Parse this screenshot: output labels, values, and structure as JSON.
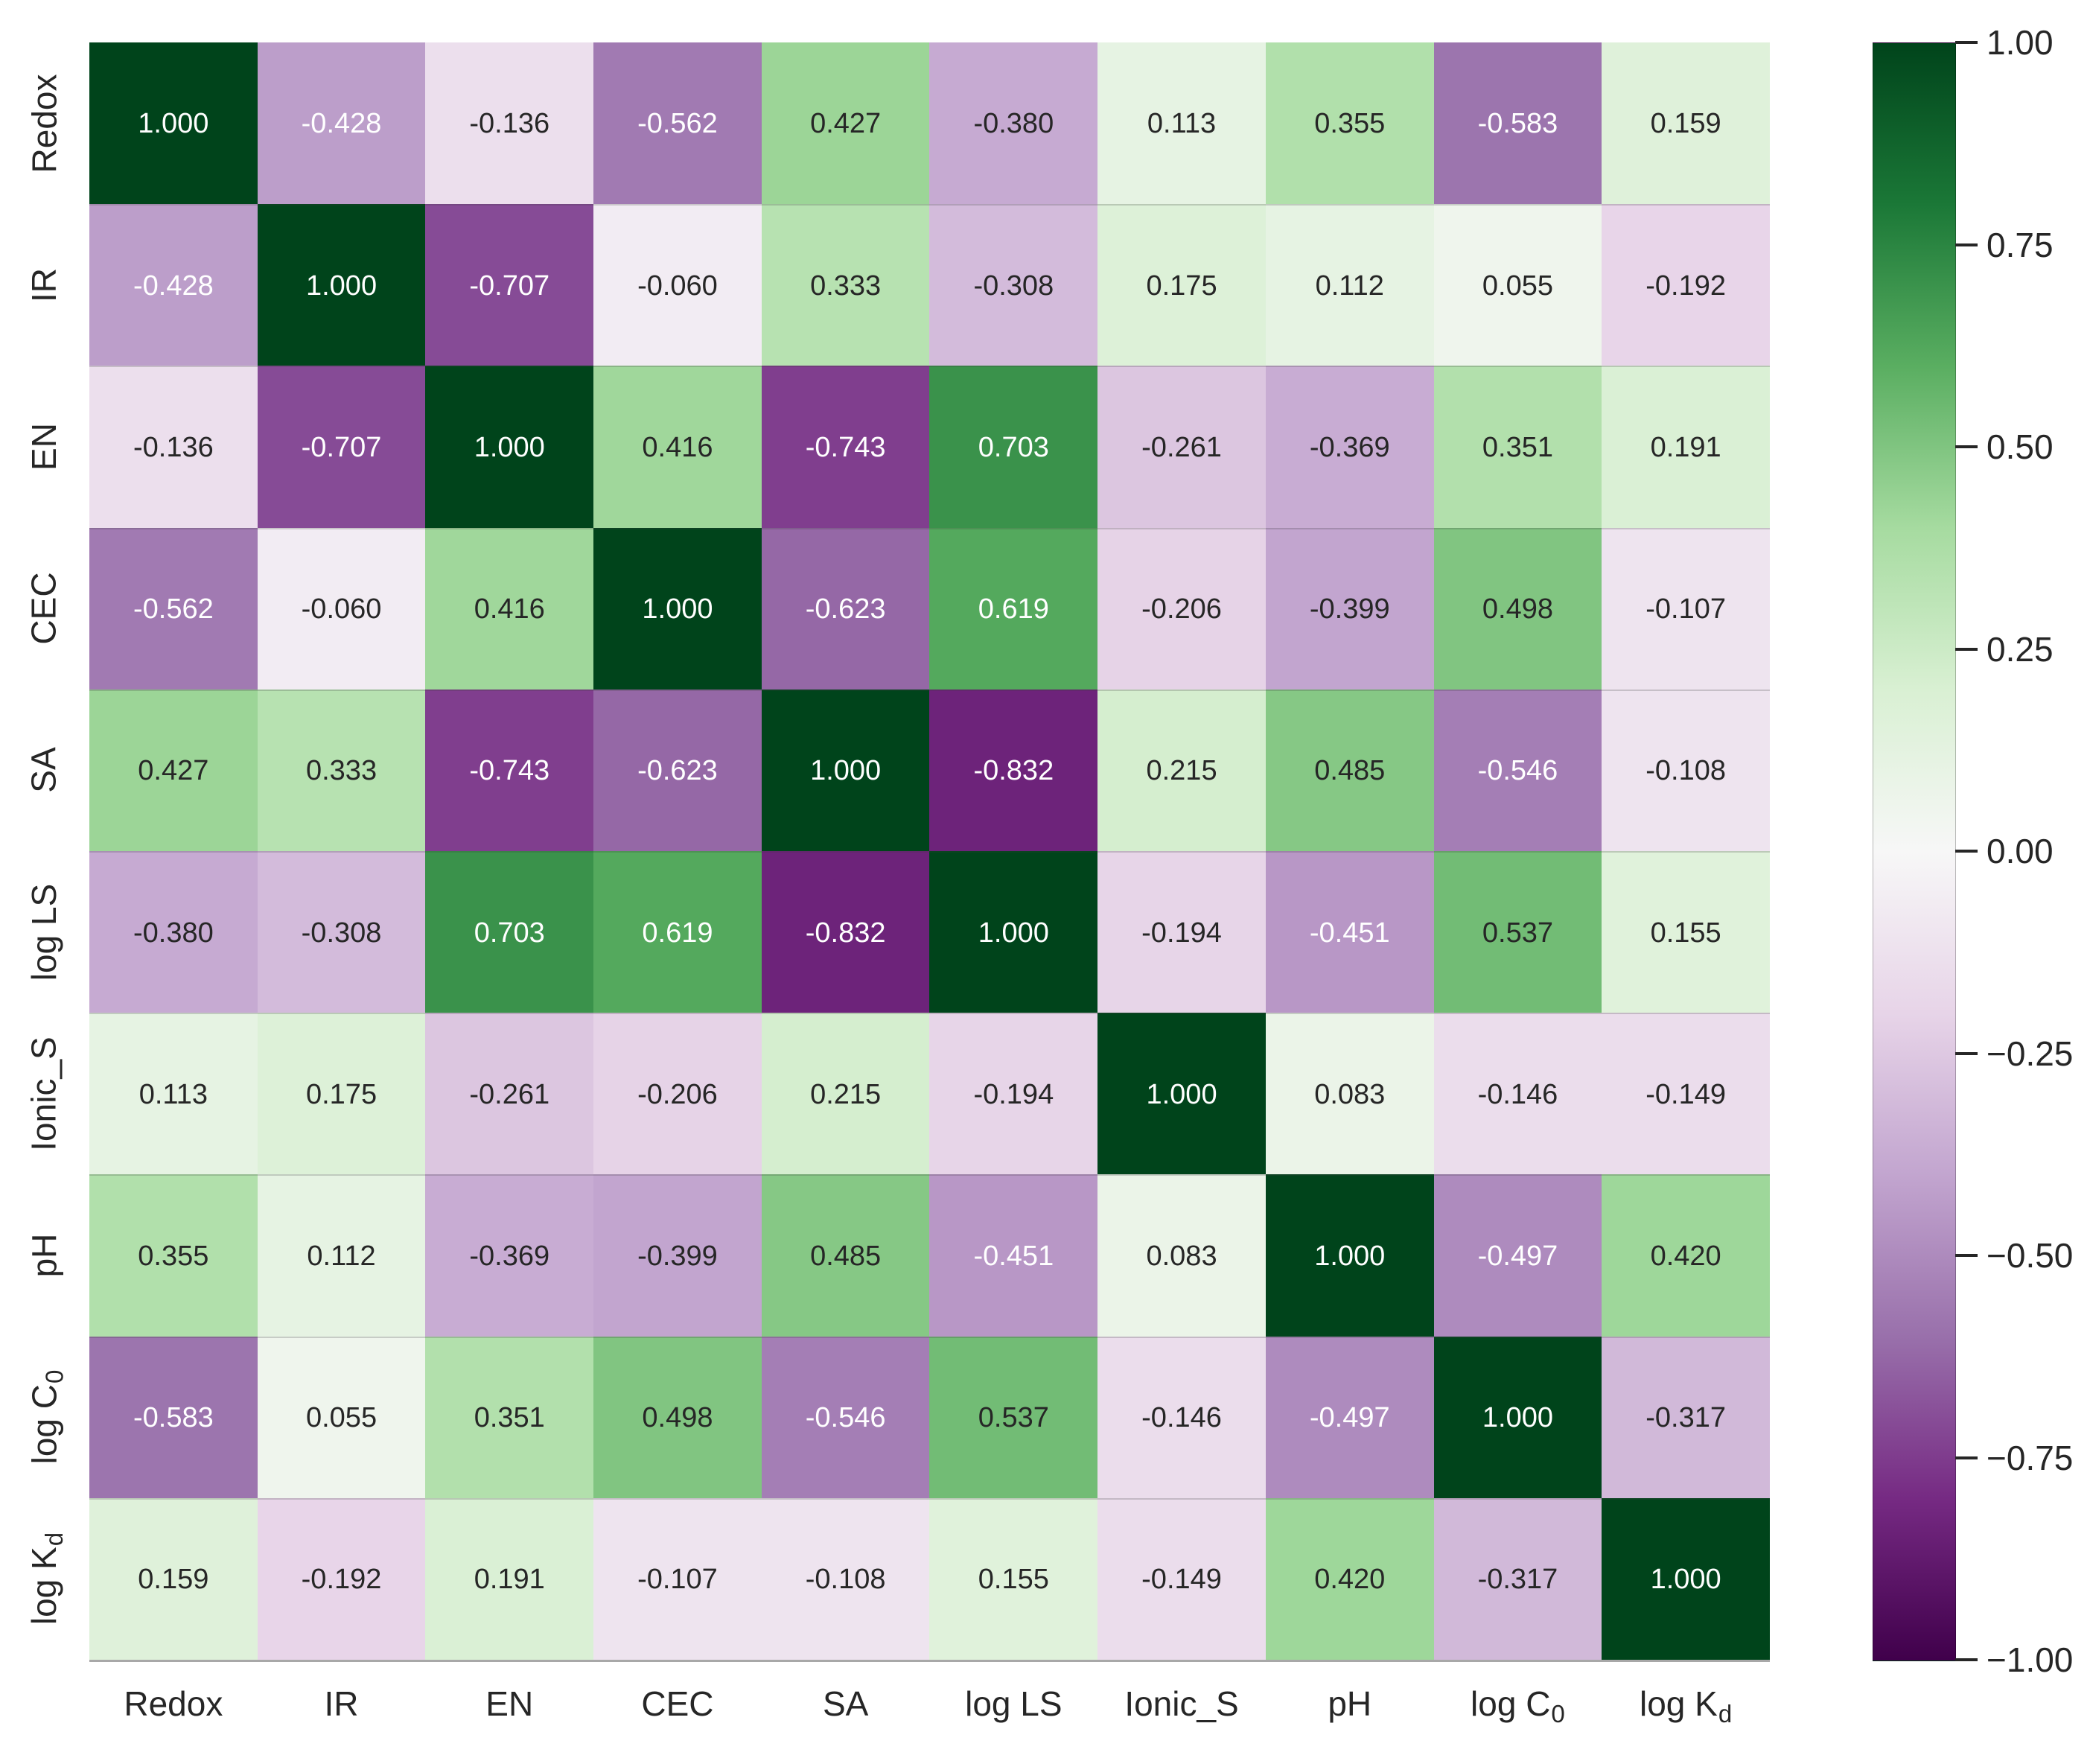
{
  "figure": {
    "background": "#ffffff"
  },
  "chart_data": {
    "type": "heatmap",
    "title": "",
    "xlabel": "",
    "ylabel": "",
    "categories": [
      "Redox",
      "IR",
      "EN",
      "CEC",
      "SA",
      "log LS",
      "Ionic_S",
      "pH",
      "log C0",
      "log Kd"
    ],
    "category_labels": [
      {
        "base": "Redox",
        "sub": ""
      },
      {
        "base": "IR",
        "sub": ""
      },
      {
        "base": "EN",
        "sub": ""
      },
      {
        "base": "CEC",
        "sub": ""
      },
      {
        "base": "SA",
        "sub": ""
      },
      {
        "base": "log LS",
        "sub": ""
      },
      {
        "base": "Ionic_S",
        "sub": ""
      },
      {
        "base": "pH",
        "sub": ""
      },
      {
        "base": "log C",
        "sub": "0"
      },
      {
        "base": "log K",
        "sub": "d"
      }
    ],
    "matrix": [
      [
        1.0,
        -0.428,
        -0.136,
        -0.562,
        0.427,
        -0.38,
        0.113,
        0.355,
        -0.583,
        0.159
      ],
      [
        -0.428,
        1.0,
        -0.707,
        -0.06,
        0.333,
        -0.308,
        0.175,
        0.112,
        0.055,
        -0.192
      ],
      [
        -0.136,
        -0.707,
        1.0,
        0.416,
        -0.743,
        0.703,
        -0.261,
        -0.369,
        0.351,
        0.191
      ],
      [
        -0.562,
        -0.06,
        0.416,
        1.0,
        -0.623,
        0.619,
        -0.206,
        -0.399,
        0.498,
        -0.107
      ],
      [
        0.427,
        0.333,
        -0.743,
        -0.623,
        1.0,
        -0.832,
        0.215,
        0.485,
        -0.546,
        -0.108
      ],
      [
        -0.38,
        -0.308,
        0.703,
        0.619,
        -0.832,
        1.0,
        -0.194,
        -0.451,
        0.537,
        0.155
      ],
      [
        0.113,
        0.175,
        -0.261,
        -0.206,
        0.215,
        -0.194,
        1.0,
        0.083,
        -0.146,
        -0.149
      ],
      [
        0.355,
        0.112,
        -0.369,
        -0.399,
        0.485,
        -0.451,
        0.083,
        1.0,
        -0.497,
        0.42
      ],
      [
        -0.583,
        0.055,
        0.351,
        0.498,
        -0.546,
        0.537,
        -0.146,
        -0.497,
        1.0,
        -0.317
      ],
      [
        0.159,
        -0.192,
        0.191,
        -0.107,
        -0.108,
        0.155,
        -0.149,
        0.42,
        -0.317,
        1.0
      ]
    ],
    "value_decimals": 3,
    "vmin": -1,
    "vmax": 1,
    "grid": false,
    "legend_position": "right-colorbar",
    "colormap": {
      "name": "PRGn",
      "stops": [
        "#40004b",
        "#762a83",
        "#9970ab",
        "#c2a5cf",
        "#e7d4e8",
        "#f7f7f7",
        "#d9f0d3",
        "#a6dba0",
        "#5aae61",
        "#1b7837",
        "#00441b"
      ]
    },
    "annotation_colors": {
      "dark": "#262626",
      "light": "#ffffff"
    },
    "colorbar": {
      "tick_labels": [
        "1.00",
        "0.75",
        "0.50",
        "0.25",
        "0.00",
        "−0.25",
        "−0.50",
        "−0.75",
        "−1.00"
      ]
    }
  }
}
